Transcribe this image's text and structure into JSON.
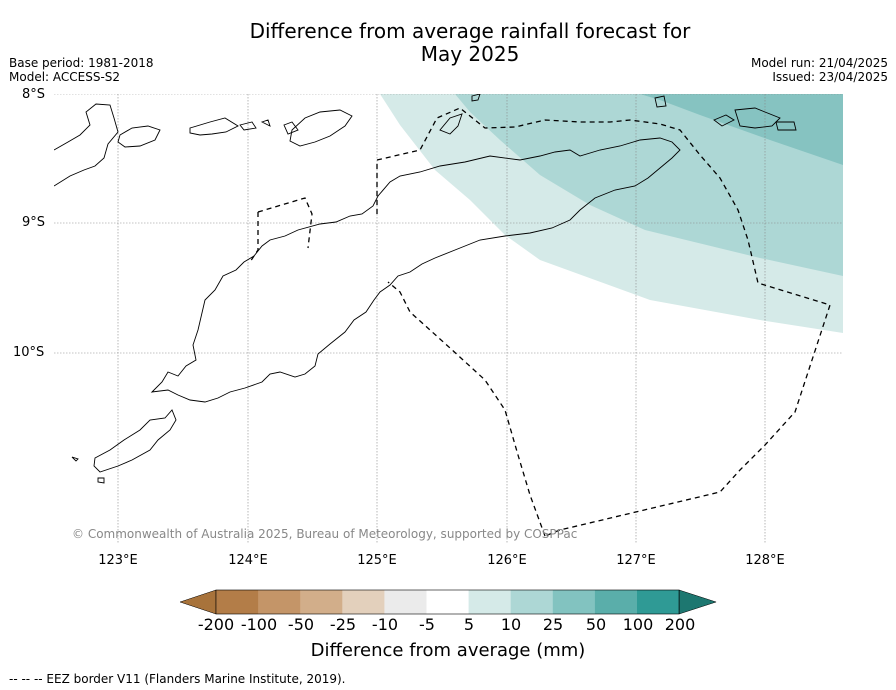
{
  "title_line1": "Difference from average rainfall forecast for",
  "title_line2": "May 2025",
  "base_period": "Base period: 1981-2018",
  "model": "Model: ACCESS-S2",
  "model_run": "Model run: 21/04/2025",
  "issued": "Issued: 23/04/2025",
  "lat_labels": [
    "8°S",
    "9°S",
    "10°S"
  ],
  "lon_labels": [
    "123°E",
    "124°E",
    "125°E",
    "126°E",
    "127°E",
    "128°E"
  ],
  "copyright": "© Commonwealth of Australia 2025, Bureau of Meteorology, supported by COSPPac",
  "colorbar": {
    "title": "Difference from average (mm)",
    "ticks": [
      "-200",
      "-100",
      "-50",
      "-25",
      "-10",
      "-5",
      "5",
      "10",
      "25",
      "50",
      "100",
      "200"
    ],
    "colors": [
      "#a8733b",
      "#b37d48",
      "#c49568",
      "#d2ae8a",
      "#e3d0bc",
      "#ebebeb",
      "#ffffff",
      "#d5eae8",
      "#add7d5",
      "#82c3c0",
      "#5aaeaa",
      "#2f9a95",
      "#1d7770"
    ]
  },
  "map_fill_colors": {
    "band_5_10": "#d5eae8",
    "band_10_25": "#add7d5",
    "band_25_50": "#86c3c1"
  },
  "footnote": "--  --  -- EEZ border V11 (Flanders Marine Institute, 2019)."
}
